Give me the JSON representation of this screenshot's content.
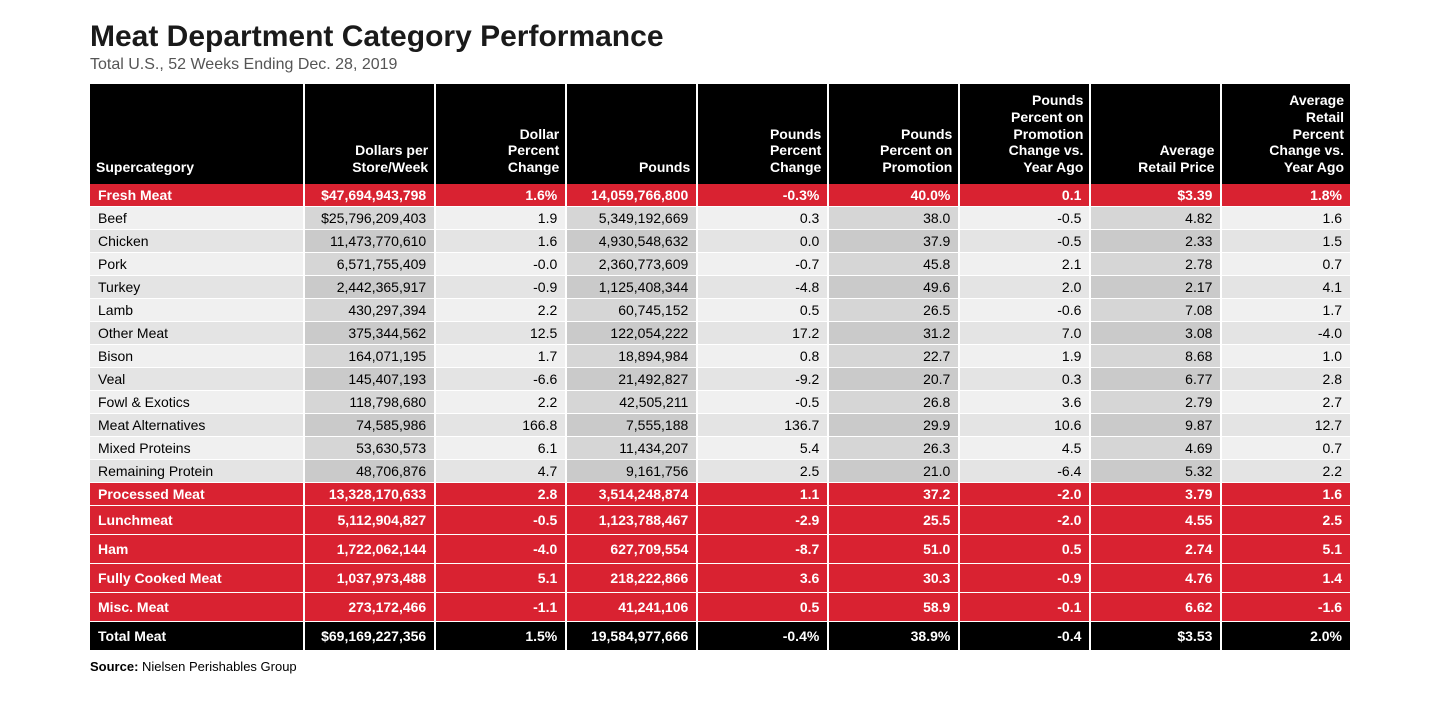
{
  "title": "Meat Department Category Performance",
  "subtitle": "Total U.S., 52 Weeks Ending Dec. 28, 2019",
  "source_label": "Source:",
  "source_text": "Nielsen Perishables Group",
  "colors": {
    "header_bg": "#000000",
    "header_fg": "#ffffff",
    "accent_red": "#d92231",
    "row_light_odd": "#f0f0f0",
    "row_light_even": "#d6d6d6",
    "row_dark_odd": "#e4e4e4",
    "row_dark_even": "#cacaca",
    "page_bg": "#ffffff"
  },
  "table": {
    "type": "table",
    "columns": [
      "Supercategory",
      "Dollars per Store/Week",
      "Dollar Percent Change",
      "Pounds",
      "Pounds Percent Change",
      "Pounds Percent on Promotion",
      "Pounds Percent on Promotion Change vs. Year Ago",
      "Average Retail Price",
      "Average Retail Percent Change vs. Year Ago"
    ],
    "rows": [
      {
        "style": "header-row",
        "cells": [
          "Fresh Meat",
          "$47,694,943,798",
          "1.6%",
          "14,059,766,800",
          "-0.3%",
          "40.0%",
          "0.1",
          "$3.39",
          "1.8%"
        ]
      },
      {
        "style": "data-light",
        "cells": [
          "Beef",
          "$25,796,209,403",
          "1.9",
          "5,349,192,669",
          "0.3",
          "38.0",
          "-0.5",
          "4.82",
          "1.6"
        ]
      },
      {
        "style": "data-dark",
        "cells": [
          "Chicken",
          "11,473,770,610",
          "1.6",
          "4,930,548,632",
          "0.0",
          "37.9",
          "-0.5",
          "2.33",
          "1.5"
        ]
      },
      {
        "style": "data-light",
        "cells": [
          "Pork",
          "6,571,755,409",
          "-0.0",
          "2,360,773,609",
          "-0.7",
          "45.8",
          "2.1",
          "2.78",
          "0.7"
        ]
      },
      {
        "style": "data-dark",
        "cells": [
          "Turkey",
          "2,442,365,917",
          "-0.9",
          "1,125,408,344",
          "-4.8",
          "49.6",
          "2.0",
          "2.17",
          "4.1"
        ]
      },
      {
        "style": "data-light",
        "cells": [
          "Lamb",
          "430,297,394",
          "2.2",
          "60,745,152",
          "0.5",
          "26.5",
          "-0.6",
          "7.08",
          "1.7"
        ]
      },
      {
        "style": "data-dark",
        "cells": [
          "Other Meat",
          "375,344,562",
          "12.5",
          "122,054,222",
          "17.2",
          "31.2",
          "7.0",
          "3.08",
          "-4.0"
        ]
      },
      {
        "style": "data-light",
        "cells": [
          "Bison",
          "164,071,195",
          "1.7",
          "18,894,984",
          "0.8",
          "22.7",
          "1.9",
          "8.68",
          "1.0"
        ]
      },
      {
        "style": "data-dark",
        "cells": [
          "Veal",
          "145,407,193",
          "-6.6",
          "21,492,827",
          "-9.2",
          "20.7",
          "0.3",
          "6.77",
          "2.8"
        ]
      },
      {
        "style": "data-light",
        "cells": [
          "Fowl & Exotics",
          "118,798,680",
          "2.2",
          "42,505,211",
          "-0.5",
          "26.8",
          "3.6",
          "2.79",
          "2.7"
        ]
      },
      {
        "style": "data-dark",
        "cells": [
          "Meat Alternatives",
          "74,585,986",
          "166.8",
          "7,555,188",
          "136.7",
          "29.9",
          "10.6",
          "9.87",
          "12.7"
        ]
      },
      {
        "style": "data-light",
        "cells": [
          "Mixed Proteins",
          "53,630,573",
          "6.1",
          "11,434,207",
          "5.4",
          "26.3",
          "4.5",
          "4.69",
          "0.7"
        ]
      },
      {
        "style": "data-dark",
        "cells": [
          "Remaining Protein",
          "48,706,876",
          "4.7",
          "9,161,756",
          "2.5",
          "21.0",
          "-6.4",
          "5.32",
          "2.2"
        ]
      },
      {
        "style": "header-row",
        "cells": [
          "Processed Meat",
          "13,328,170,633",
          "2.8",
          "3,514,248,874",
          "1.1",
          "37.2",
          "-2.0",
          "3.79",
          "1.6"
        ]
      },
      {
        "style": "red-row",
        "cells": [
          "Lunchmeat",
          "5,112,904,827",
          "-0.5",
          "1,123,788,467",
          "-2.9",
          "25.5",
          "-2.0",
          "4.55",
          "2.5"
        ]
      },
      {
        "style": "red-row",
        "cells": [
          "Ham",
          "1,722,062,144",
          "-4.0",
          "627,709,554",
          "-8.7",
          "51.0",
          "0.5",
          "2.74",
          "5.1"
        ]
      },
      {
        "style": "red-row",
        "cells": [
          "Fully Cooked Meat",
          "1,037,973,488",
          "5.1",
          "218,222,866",
          "3.6",
          "30.3",
          "-0.9",
          "4.76",
          "1.4"
        ]
      },
      {
        "style": "red-row",
        "cells": [
          "Misc. Meat",
          "273,172,466",
          "-1.1",
          "41,241,106",
          "0.5",
          "58.9",
          "-0.1",
          "6.62",
          "-1.6"
        ]
      },
      {
        "style": "total-row",
        "cells": [
          "Total Meat",
          "$69,169,227,356",
          "1.5%",
          "19,584,977,666",
          "-0.4%",
          "38.9%",
          "-0.4",
          "$3.53",
          "2.0%"
        ]
      }
    ]
  }
}
